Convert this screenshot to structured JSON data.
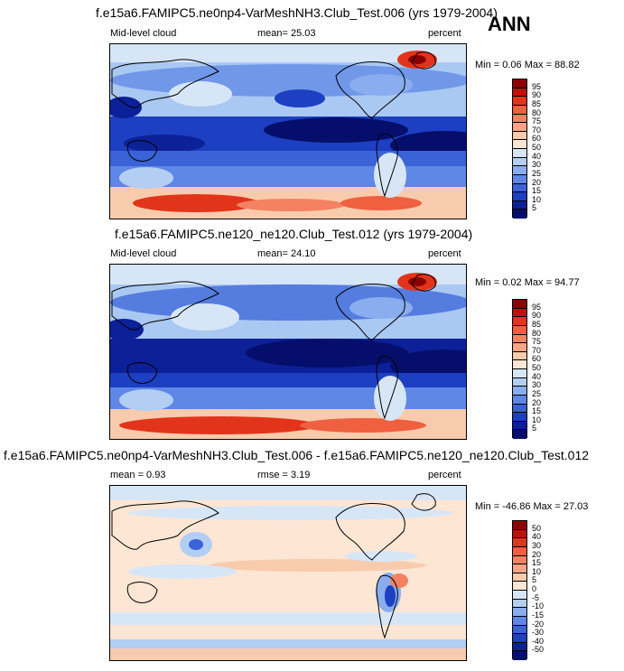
{
  "season": "ANN",
  "panels": [
    {
      "title": "f.e15a6.FAMIPC5.ne0np4-VarMeshNH3.Club_Test.006 (yrs 1979-2004)",
      "left_label": "Mid-level cloud",
      "center_label": "mean=  25.03",
      "units": "percent",
      "minmax": "Min =  0.06 Max = 88.82"
    },
    {
      "title": "f.e15a6.FAMIPC5.ne120_ne120.Club_Test.012 (yrs 1979-2004)",
      "left_label": "Mid-level cloud",
      "center_label": "mean=  24.10",
      "units": "percent",
      "minmax": "Min =  0.02 Max = 94.77"
    },
    {
      "title": "f.e15a6.FAMIPC5.ne0np4-VarMeshNH3.Club_Test.006 - f.e15a6.FAMIPC5.ne120_ne120.Club_Test.012",
      "left_label": "mean =   0.93",
      "center_label": "rmse =   3.19",
      "units": "percent",
      "minmax": "Min = -46.86 Max = 27.03"
    }
  ],
  "chart_data": [
    {
      "type": "heatmap",
      "title": "f.e15a6.FAMIPC5.ne0np4-VarMeshNH3.Club_Test.006 (yrs 1979-2004)",
      "variable": "Mid-level cloud",
      "units": "percent",
      "mean": 25.03,
      "min": 0.06,
      "max": 88.82,
      "colorbar_levels": [
        95,
        90,
        85,
        80,
        75,
        70,
        60,
        50,
        40,
        30,
        25,
        20,
        15,
        10,
        5
      ],
      "colorbar_colors": [
        "#8c0000",
        "#c21000",
        "#e2341a",
        "#ef6040",
        "#f48262",
        "#f7a584",
        "#f9cbad",
        "#fde6d4",
        "#d7e6f7",
        "#b3cef3",
        "#89adee",
        "#5f87e6",
        "#3a63d8",
        "#1d3fc2",
        "#0c2098",
        "#050f6b"
      ]
    },
    {
      "type": "heatmap",
      "title": "f.e15a6.FAMIPC5.ne120_ne120.Club_Test.012 (yrs 1979-2004)",
      "variable": "Mid-level cloud",
      "units": "percent",
      "mean": 24.1,
      "min": 0.02,
      "max": 94.77,
      "colorbar_levels": [
        95,
        90,
        85,
        80,
        75,
        70,
        60,
        50,
        40,
        30,
        25,
        20,
        15,
        10,
        5
      ],
      "colorbar_colors": [
        "#8c0000",
        "#c21000",
        "#e2341a",
        "#ef6040",
        "#f48262",
        "#f7a584",
        "#f9cbad",
        "#fde6d4",
        "#d7e6f7",
        "#b3cef3",
        "#89adee",
        "#5f87e6",
        "#3a63d8",
        "#1d3fc2",
        "#0c2098",
        "#050f6b"
      ]
    },
    {
      "type": "heatmap",
      "title": "f.e15a6.FAMIPC5.ne0np4-VarMeshNH3.Club_Test.006 - f.e15a6.FAMIPC5.ne120_ne120.Club_Test.012",
      "units": "percent",
      "mean": 0.93,
      "rmse": 3.19,
      "min": -46.86,
      "max": 27.03,
      "colorbar_levels": [
        50,
        40,
        30,
        20,
        15,
        10,
        5,
        0,
        -5,
        -10,
        -15,
        -20,
        -30,
        -40,
        -50
      ],
      "colorbar_colors": [
        "#8c0000",
        "#c21000",
        "#e2341a",
        "#ef6040",
        "#f48262",
        "#f7a584",
        "#f9cbad",
        "#fde6d4",
        "#d7e6f7",
        "#b3cef3",
        "#89adee",
        "#5f87e6",
        "#3a63d8",
        "#1d3fc2",
        "#0c2098",
        "#050f6b"
      ]
    }
  ]
}
